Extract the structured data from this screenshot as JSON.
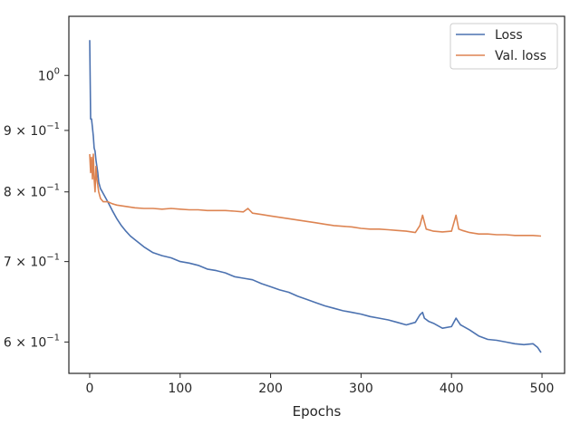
{
  "chart_data": {
    "type": "line",
    "title": "",
    "xlabel": "Epochs",
    "ylabel": "",
    "yscale": "log",
    "xlim": [
      -23,
      525
    ],
    "ylim": [
      0.565,
      1.12
    ],
    "grid": false,
    "legend_position": "top-right",
    "xticks": [
      0,
      100,
      200,
      300,
      400,
      500
    ],
    "xtick_labels": [
      "0",
      "100",
      "200",
      "300",
      "400",
      "500"
    ],
    "yticks": [
      {
        "value": 1.0,
        "base": "10",
        "exp": "0"
      },
      {
        "value": 0.9,
        "base": "9 × 10",
        "exp": "−1"
      },
      {
        "value": 0.8,
        "base": "8 × 10",
        "exp": "−1"
      },
      {
        "value": 0.7,
        "base": "7 × 10",
        "exp": "−1"
      },
      {
        "value": 0.6,
        "base": "6 × 10",
        "exp": "−1"
      }
    ],
    "series": [
      {
        "name": "Loss",
        "color": "#4c72b0",
        "x": [
          0,
          1,
          2,
          3,
          4,
          5,
          6,
          7,
          8,
          9,
          10,
          12,
          14,
          16,
          18,
          20,
          25,
          30,
          35,
          40,
          45,
          50,
          60,
          70,
          80,
          90,
          100,
          110,
          120,
          130,
          140,
          150,
          160,
          170,
          180,
          190,
          200,
          210,
          220,
          230,
          240,
          250,
          260,
          270,
          280,
          290,
          300,
          310,
          320,
          330,
          340,
          350,
          360,
          365,
          368,
          370,
          375,
          380,
          390,
          400,
          405,
          408,
          410,
          420,
          430,
          440,
          450,
          460,
          470,
          480,
          490,
          495,
          499
        ],
        "y": [
          1.07,
          0.92,
          0.92,
          0.905,
          0.89,
          0.87,
          0.865,
          0.85,
          0.84,
          0.83,
          0.815,
          0.805,
          0.8,
          0.795,
          0.79,
          0.785,
          0.772,
          0.76,
          0.75,
          0.742,
          0.735,
          0.73,
          0.72,
          0.712,
          0.708,
          0.705,
          0.7,
          0.698,
          0.695,
          0.69,
          0.688,
          0.685,
          0.68,
          0.678,
          0.676,
          0.671,
          0.667,
          0.663,
          0.66,
          0.655,
          0.651,
          0.647,
          0.643,
          0.64,
          0.637,
          0.635,
          0.633,
          0.63,
          0.628,
          0.626,
          0.623,
          0.62,
          0.623,
          0.632,
          0.635,
          0.628,
          0.624,
          0.622,
          0.616,
          0.618,
          0.628,
          0.623,
          0.62,
          0.614,
          0.607,
          0.603,
          0.602,
          0.6,
          0.598,
          0.597,
          0.598,
          0.594,
          0.588
        ]
      },
      {
        "name": "Val. loss",
        "color": "#dd8452",
        "x": [
          0,
          1,
          2,
          3,
          4,
          5,
          6,
          7,
          8,
          10,
          12,
          15,
          20,
          25,
          30,
          40,
          50,
          60,
          70,
          80,
          90,
          100,
          110,
          120,
          130,
          140,
          150,
          160,
          170,
          175,
          180,
          190,
          200,
          210,
          220,
          230,
          240,
          250,
          260,
          270,
          280,
          290,
          300,
          310,
          320,
          330,
          340,
          350,
          360,
          365,
          368,
          372,
          380,
          390,
          400,
          405,
          408,
          412,
          420,
          430,
          440,
          450,
          460,
          470,
          480,
          490,
          499
        ],
        "y": [
          0.86,
          0.83,
          0.855,
          0.82,
          0.86,
          0.82,
          0.8,
          0.84,
          0.82,
          0.8,
          0.79,
          0.785,
          0.785,
          0.782,
          0.78,
          0.778,
          0.776,
          0.775,
          0.775,
          0.774,
          0.775,
          0.774,
          0.773,
          0.773,
          0.772,
          0.772,
          0.772,
          0.771,
          0.77,
          0.775,
          0.768,
          0.766,
          0.764,
          0.762,
          0.76,
          0.758,
          0.756,
          0.754,
          0.752,
          0.75,
          0.749,
          0.748,
          0.746,
          0.745,
          0.745,
          0.744,
          0.743,
          0.742,
          0.74,
          0.75,
          0.765,
          0.745,
          0.742,
          0.741,
          0.742,
          0.765,
          0.745,
          0.743,
          0.74,
          0.738,
          0.738,
          0.737,
          0.737,
          0.736,
          0.736,
          0.736,
          0.735
        ]
      }
    ]
  }
}
